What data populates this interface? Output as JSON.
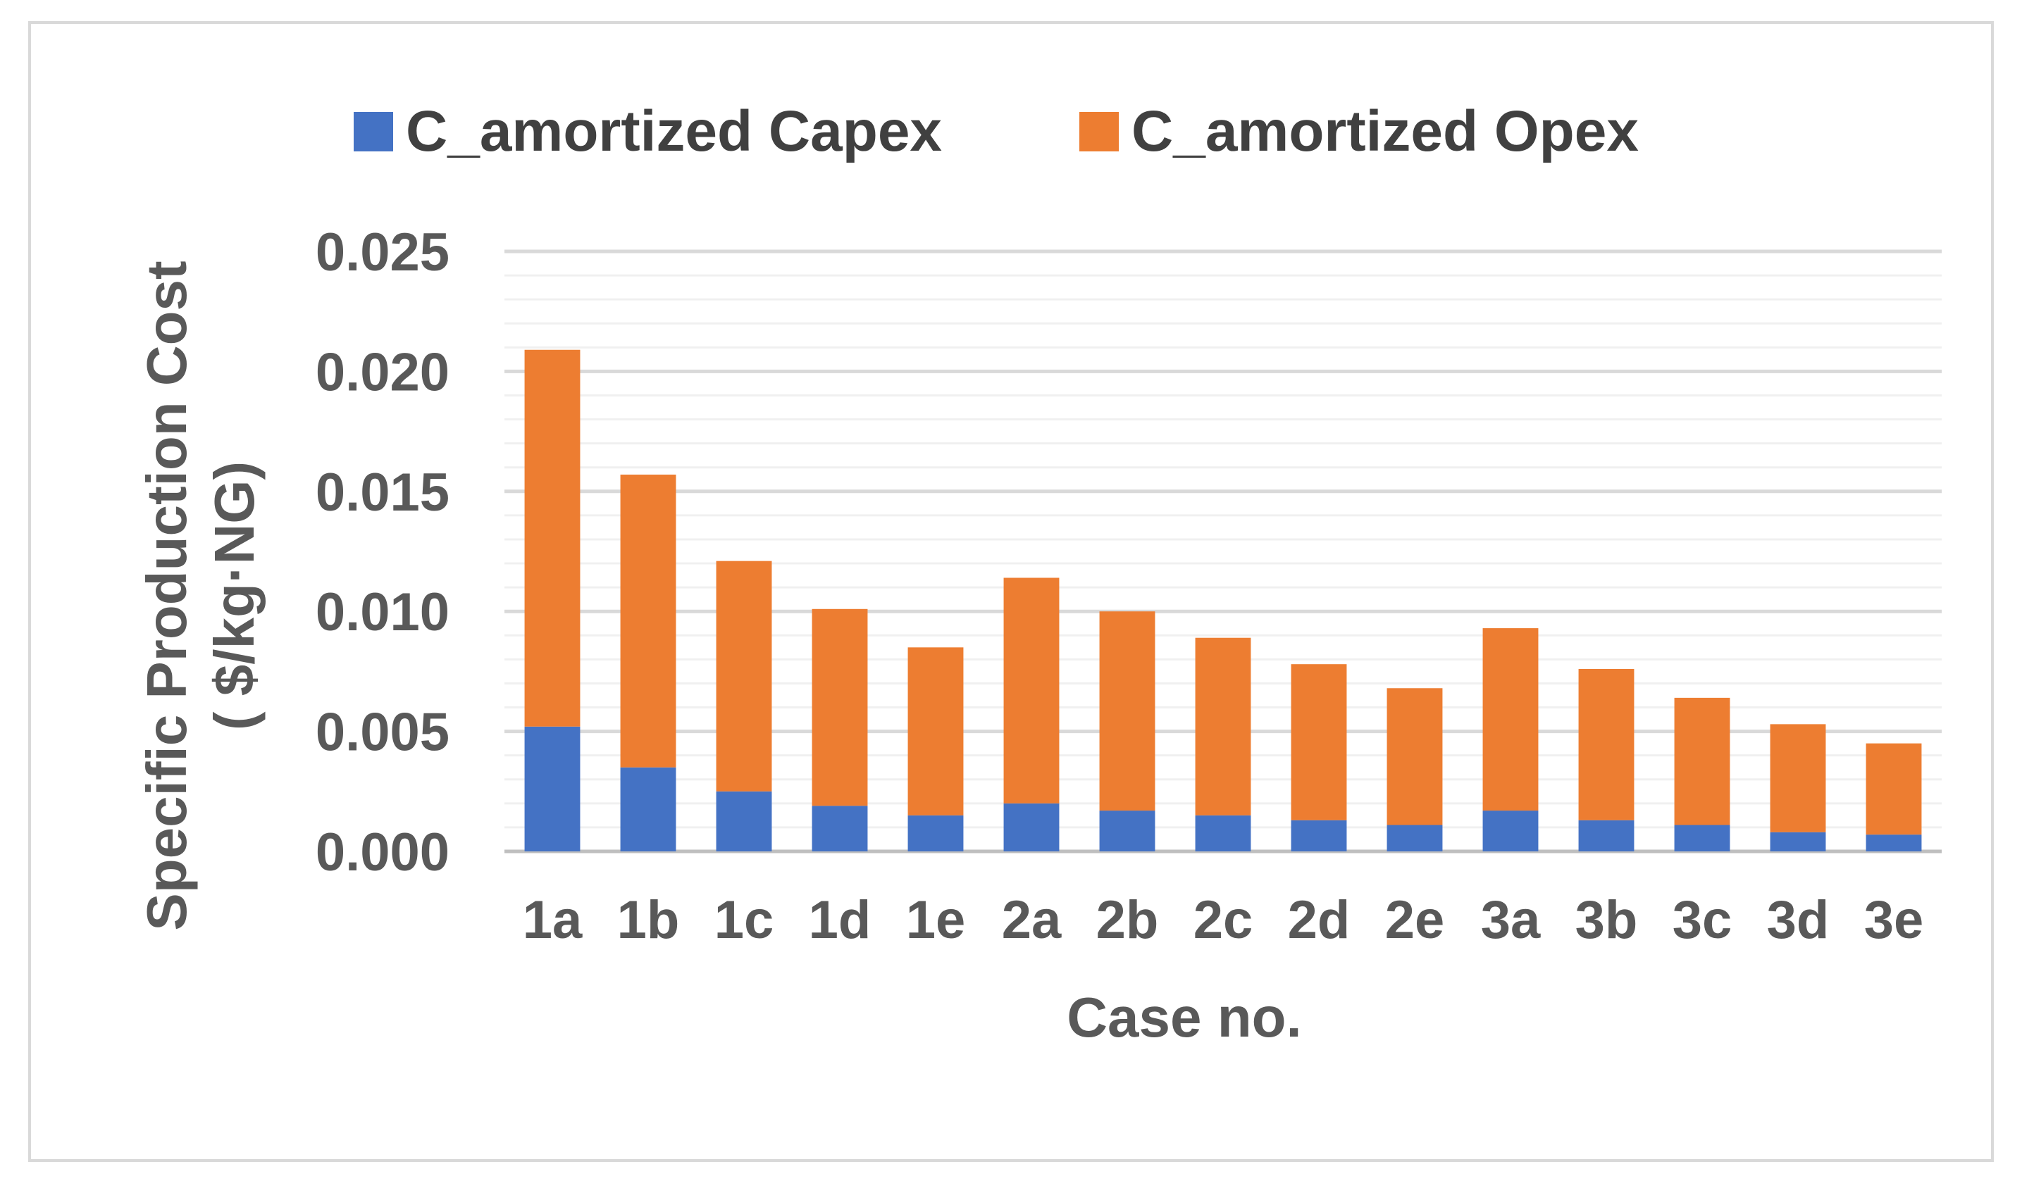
{
  "chart_data": {
    "type": "bar",
    "stacked": true,
    "title": "",
    "xlabel": "Case no.",
    "ylabel_line1": "Specific Production Cost",
    "ylabel_line2": "( $/kg·NG)",
    "ylim": [
      0,
      0.025
    ],
    "ytick_labels": [
      "0.000",
      "0.005",
      "0.010",
      "0.015",
      "0.020",
      "0.025"
    ],
    "yticks": [
      0,
      0.005,
      0.01,
      0.015,
      0.02,
      0.025
    ],
    "minor_grid_step": 0.001,
    "grid": true,
    "legend_position": "top",
    "categories": [
      "1a",
      "1b",
      "1c",
      "1d",
      "1e",
      "2a",
      "2b",
      "2c",
      "2d",
      "2e",
      "3a",
      "3b",
      "3c",
      "3d",
      "3e"
    ],
    "series": [
      {
        "name": "C_amortized Capex",
        "color": "#4472c4",
        "values": [
          0.0052,
          0.0035,
          0.0025,
          0.0019,
          0.0015,
          0.002,
          0.0017,
          0.0015,
          0.0013,
          0.0011,
          0.0017,
          0.0013,
          0.0011,
          0.0008,
          0.0007
        ]
      },
      {
        "name": "C_amortized Opex",
        "color": "#ed7d31",
        "values": [
          0.0157,
          0.0122,
          0.0096,
          0.0082,
          0.007,
          0.0094,
          0.0083,
          0.0074,
          0.0065,
          0.0057,
          0.0076,
          0.0063,
          0.0053,
          0.0045,
          0.0038
        ]
      }
    ]
  }
}
